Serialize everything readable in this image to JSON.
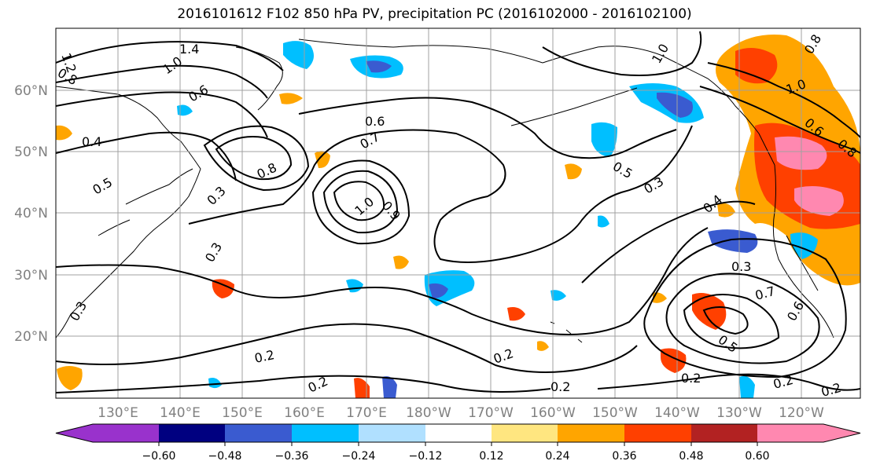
{
  "title": "2016101612 F102 850 hPa PV, precipitation PC (2016102000 - 2016102100)",
  "lat_labels": [
    "60°N",
    "50°N",
    "40°N",
    "30°N",
    "20°N"
  ],
  "lon_labels": [
    "130°E",
    "140°E",
    "150°E",
    "160°E",
    "170°E",
    "180°W",
    "170°W",
    "160°W",
    "150°W",
    "140°W",
    "130°W",
    "120°W"
  ],
  "colorbar": {
    "ticks": [
      "−0.60",
      "−0.48",
      "−0.36",
      "−0.24",
      "−0.12",
      "0.12",
      "0.24",
      "0.36",
      "0.48",
      "0.60"
    ],
    "colors": [
      "#9932cc",
      "#000080",
      "#3a5bd0",
      "#00bfff",
      "#b0e0ff",
      "#ffffff",
      "#ffe680",
      "#ffa500",
      "#ff4000",
      "#b22222",
      "#ff88b0",
      "#ff88b0"
    ]
  },
  "contour_labels": [
    "1.4",
    "1.0",
    "1.2",
    "0.8",
    "0.6",
    "0.4",
    "0.5",
    "0.3",
    "0.7",
    "0.8",
    "0.9",
    "1.0",
    "0.6",
    "0.5",
    "0.3",
    "0.4",
    "0.3",
    "0.7",
    "0.6",
    "0.5",
    "0.2",
    "0.2",
    "0.2",
    "0.2",
    "0.2",
    "0.2",
    "0.2",
    "0.3",
    "0.3",
    "1.0",
    "0.8",
    "0.6",
    "1.0",
    "0.8"
  ]
}
